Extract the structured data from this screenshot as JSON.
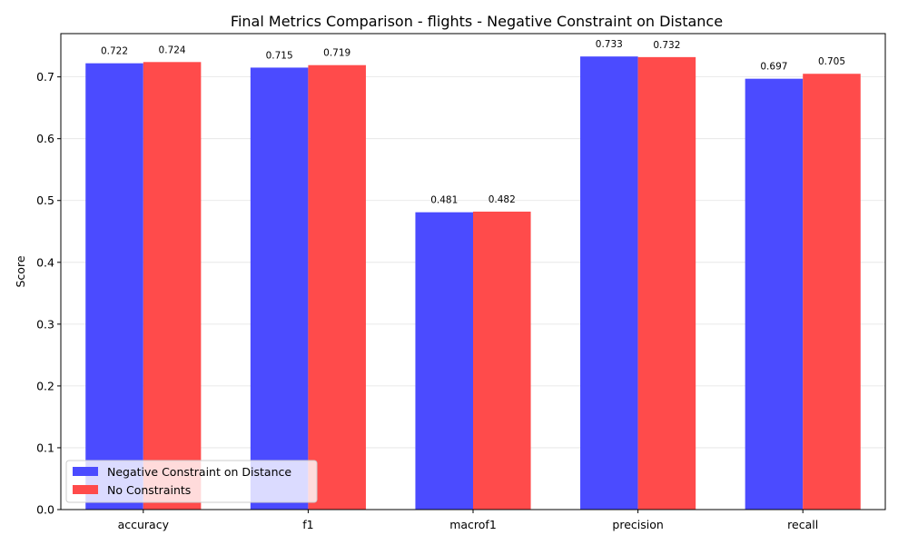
{
  "chart_data": {
    "type": "bar",
    "title": "Final Metrics Comparison - flights - Negative Constraint on Distance",
    "xlabel": "",
    "ylabel": "Score",
    "categories": [
      "accuracy",
      "f1",
      "macrof1",
      "precision",
      "recall"
    ],
    "series": [
      {
        "name": "Negative Constraint on Distance",
        "color": "#4b4bff",
        "values": [
          0.722,
          0.715,
          0.481,
          0.733,
          0.697
        ],
        "labels": [
          "0.722",
          "0.715",
          "0.481",
          "0.733",
          "0.697"
        ]
      },
      {
        "name": "No Constraints",
        "color": "#ff4b4b",
        "values": [
          0.724,
          0.719,
          0.482,
          0.732,
          0.705
        ],
        "labels": [
          "0.724",
          "0.719",
          "0.482",
          "0.732",
          "0.705"
        ]
      }
    ],
    "ylim": [
      0,
      0.77
    ],
    "yticks": [
      0.0,
      0.1,
      0.2,
      0.3,
      0.4,
      0.5,
      0.6,
      0.7
    ],
    "ytick_labels": [
      "0.0",
      "0.1",
      "0.2",
      "0.3",
      "0.4",
      "0.5",
      "0.6",
      "0.7"
    ],
    "grid": "y",
    "legend_position": "lower-left"
  }
}
